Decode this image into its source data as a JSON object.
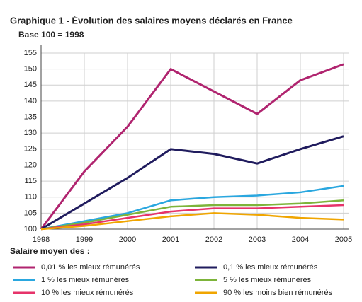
{
  "chart_data": {
    "type": "line",
    "title": "Graphique 1 - Évolution des salaires moyens déclarés en France",
    "subtitle": "Base 100 = 1998",
    "legend_title": "Salaire moyen des :",
    "categories": [
      "1998",
      "1999",
      "2000",
      "2001",
      "2002",
      "2003",
      "2004",
      "2005"
    ],
    "ylim": [
      100,
      155
    ],
    "yticks": [
      100,
      105,
      110,
      115,
      120,
      125,
      130,
      135,
      140,
      145,
      150,
      155
    ],
    "grid": true,
    "legend": "bottom",
    "series": [
      {
        "name": "0,01 % les mieux rémunérés",
        "color": "#b0246f",
        "values": [
          100,
          118,
          132,
          150,
          143,
          136,
          146.5,
          151.5
        ]
      },
      {
        "name": "0,1 % les mieux rémunérés",
        "color": "#201c5e",
        "values": [
          100,
          108,
          116,
          125,
          123.5,
          120.5,
          125,
          129
        ]
      },
      {
        "name": "1 % les mieux rémunérés",
        "color": "#2aa7df",
        "values": [
          100,
          102.5,
          105,
          109,
          110,
          110.5,
          111.5,
          113.5
        ]
      },
      {
        "name": "5 % les mieux rémunérés",
        "color": "#7db43a",
        "values": [
          100,
          102,
          104.5,
          107,
          107.5,
          107.5,
          108,
          109
        ]
      },
      {
        "name": "10 % les mieux rémunérés",
        "color": "#e6336a",
        "values": [
          100,
          101.5,
          103.5,
          105.5,
          106.5,
          106.5,
          107,
          107.5
        ]
      },
      {
        "name": "90 % les moins bien rémunérés",
        "color": "#f0a500",
        "values": [
          100,
          101,
          102.5,
          104,
          105,
          104.5,
          103.5,
          103
        ]
      }
    ]
  }
}
